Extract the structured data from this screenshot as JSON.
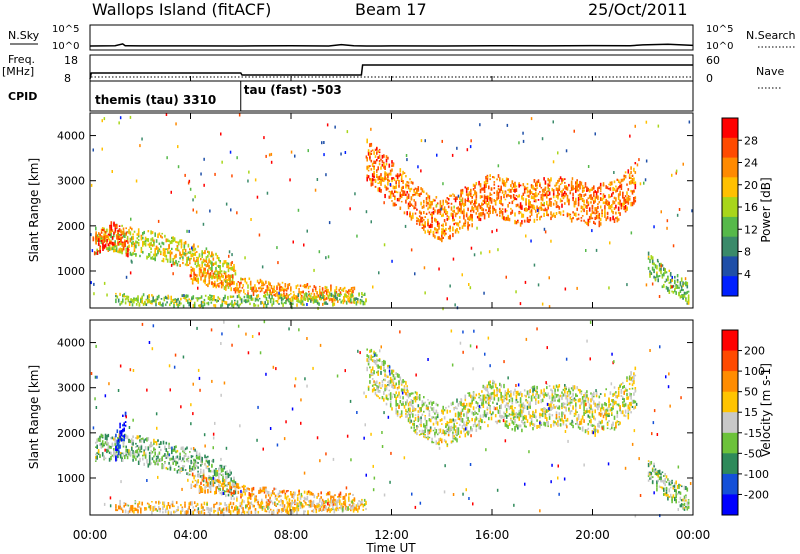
{
  "header": {
    "site": "Wallops Island (fitACF)",
    "beam": "Beam 17",
    "date": "25/Oct/2011"
  },
  "sky_panel": {
    "left_label": "N.Sky",
    "right_label": "N.Search",
    "left_ticks": [
      "10^5",
      "10^0"
    ],
    "right_ticks": [
      "10^5",
      "10^0"
    ]
  },
  "freq_panel": {
    "left_label_1": "Freq.",
    "left_label_2": "[MHz]",
    "right_label": "Nave",
    "left_ticks": [
      "18",
      "8"
    ],
    "right_ticks": [
      "60",
      "0"
    ]
  },
  "cpid_panel": {
    "label": "CPID",
    "modes": [
      {
        "name": "themis (tau) 3310",
        "start_hour": 0,
        "end_hour": 6
      },
      {
        "name": "tau (fast) -503",
        "start_hour": 6,
        "end_hour": 24
      }
    ]
  },
  "colors": {
    "power": [
      "#0020ff",
      "#1f4fa8",
      "#3a8a6a",
      "#56b94a",
      "#a8d61a",
      "#ffc000",
      "#ff8a00",
      "#ff4a00",
      "#ff0000"
    ],
    "velocity": [
      "#0000ff",
      "#1450d8",
      "#2e8a5a",
      "#6cc23a",
      "#c8c8c8",
      "#ffc400",
      "#ff8c00",
      "#ff4a00",
      "#ff0000"
    ]
  },
  "chart_data": [
    {
      "type": "line",
      "panel": "N.Sky / N.Search",
      "x_unit": "hour UT",
      "series": [
        {
          "x": [
            0,
            1,
            1.3,
            1.4,
            2,
            4,
            6,
            8,
            9.5,
            10,
            10.5,
            11,
            12,
            14,
            16,
            18,
            20,
            21.5,
            22,
            23,
            24
          ],
          "y": [
            1,
            1.2,
            4,
            1.2,
            1.1,
            1.1,
            1,
            1.2,
            1,
            2.5,
            1.2,
            1,
            1.1,
            1,
            1.2,
            1.1,
            1.3,
            1.2,
            2,
            3,
            1.5
          ]
        }
      ]
    },
    {
      "type": "line",
      "panel": "Freq. / Nave",
      "x_unit": "hour UT",
      "series": [
        {
          "x": [
            0,
            0.05,
            6,
            6.05,
            10.8,
            10.85,
            24
          ],
          "y": [
            8,
            11,
            11,
            10,
            10,
            15,
            15
          ]
        }
      ]
    },
    {
      "type": "heatmap",
      "xlabel": "Time UT",
      "ylabel": "Slant Range [km]",
      "xlim": [
        0,
        24
      ],
      "ylim": [
        180,
        4500
      ],
      "x_ticks": [
        "00:00",
        "04:00",
        "08:00",
        "12:00",
        "16:00",
        "20:00",
        "00:00"
      ],
      "y_ticks": [
        1000,
        2000,
        3000,
        4000
      ],
      "colorbar": {
        "label": "Power [dB]",
        "ticks": [
          "28",
          "24",
          "20",
          "16",
          "12",
          "8",
          "4"
        ]
      },
      "bands": [
        {
          "x": [
            0.2,
            1.0,
            2.0,
            3.2,
            4.2,
            5.0,
            5.8
          ],
          "y": [
            1700,
            1750,
            1650,
            1500,
            1350,
            1100,
            850
          ],
          "w": 300,
          "v": 0.55
        },
        {
          "x": [
            0.1,
            0.4,
            0.8,
            1.2,
            1.5
          ],
          "y": [
            1650,
            1700,
            1900,
            1750,
            1600
          ],
          "w": 250,
          "v": 0.85
        },
        {
          "x": [
            4.0,
            5.0,
            6.0,
            7.5,
            9.0,
            10.5
          ],
          "y": [
            950,
            850,
            700,
            600,
            550,
            500
          ],
          "w": 180,
          "v": 0.7
        },
        {
          "x": [
            1.0,
            3.0,
            5.0,
            7.0,
            9.0,
            11.0
          ],
          "y": [
            400,
            380,
            360,
            380,
            400,
            420
          ],
          "w": 120,
          "v": 0.45
        },
        {
          "x": [
            11.0,
            12.0,
            13.0,
            14.0,
            15.0,
            16.0,
            17.0,
            18.0,
            19.0,
            20.0,
            21.0,
            21.7
          ],
          "y": [
            3500,
            3000,
            2450,
            2150,
            2450,
            2750,
            2500,
            2650,
            2650,
            2450,
            2600,
            3050
          ],
          "w": 460,
          "v": 0.75
        },
        {
          "x": [
            22.2,
            23.0,
            23.8
          ],
          "y": [
            1200,
            800,
            550
          ],
          "w": 250,
          "v": 0.4
        }
      ]
    },
    {
      "type": "heatmap",
      "xlabel": "Time UT",
      "ylabel": "Slant Range [km]",
      "xlim": [
        0,
        24
      ],
      "ylim": [
        180,
        4500
      ],
      "x_ticks": [
        "00:00",
        "04:00",
        "08:00",
        "12:00",
        "16:00",
        "20:00",
        "00:00"
      ],
      "y_ticks": [
        1000,
        2000,
        3000,
        4000
      ],
      "colorbar": {
        "label": "Velocity [m s-1]",
        "ticks": [
          "200",
          "100",
          "50",
          "15",
          "-15",
          "-50",
          "-100",
          "-200"
        ]
      },
      "bands": [
        {
          "x": [
            0.2,
            1.0,
            2.0,
            3.2,
            4.2,
            5.0,
            5.8
          ],
          "y": [
            1700,
            1750,
            1650,
            1500,
            1350,
            1100,
            850
          ],
          "w": 300,
          "v": 0.4
        },
        {
          "x": [
            1.0,
            1.2,
            1.4
          ],
          "y": [
            1700,
            2000,
            2300
          ],
          "w": 300,
          "v": 0.05
        },
        {
          "x": [
            4.0,
            5.0,
            6.0,
            7.5,
            9.0,
            10.5
          ],
          "y": [
            950,
            850,
            700,
            600,
            550,
            500
          ],
          "w": 180,
          "v": 0.65
        },
        {
          "x": [
            1.0,
            3.0,
            5.0,
            7.0,
            9.0,
            11.0
          ],
          "y": [
            400,
            380,
            360,
            380,
            400,
            420
          ],
          "w": 120,
          "v": 0.6
        },
        {
          "x": [
            11.0,
            12.0,
            13.0,
            14.0,
            15.0,
            16.0,
            17.0,
            18.0,
            19.0,
            20.0,
            21.0,
            21.7
          ],
          "y": [
            3500,
            3000,
            2450,
            2150,
            2450,
            2750,
            2500,
            2650,
            2650,
            2450,
            2600,
            3050
          ],
          "w": 460,
          "v": 0.5
        },
        {
          "x": [
            22.2,
            23.0,
            23.8
          ],
          "y": [
            1200,
            800,
            550
          ],
          "w": 250,
          "v": 0.45
        }
      ]
    }
  ]
}
